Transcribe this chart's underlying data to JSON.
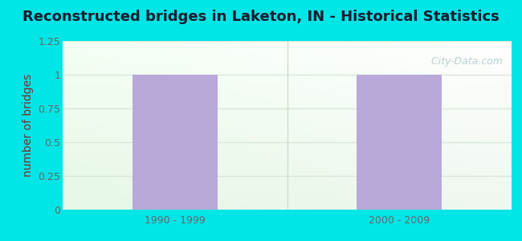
{
  "title": "Reconstructed bridges in Laketon, IN - Historical Statistics",
  "categories": [
    "1990 - 1999",
    "2000 - 2009"
  ],
  "values": [
    1,
    1
  ],
  "bar_color": "#b9a9d9",
  "ylabel": "number of bridges",
  "ylim": [
    0,
    1.25
  ],
  "yticks": [
    0,
    0.25,
    0.5,
    0.75,
    1.0,
    1.25
  ],
  "background_outer": "#00e5e5",
  "grid_color": "#d8e8d8",
  "title_fontsize": 13,
  "label_fontsize": 10,
  "tick_fontsize": 9,
  "title_color": "#1a1a2e",
  "axis_label_color": "#7a3030",
  "tick_color": "#666666",
  "watermark_text": "  City-Data.com",
  "watermark_color": "#b0cece"
}
